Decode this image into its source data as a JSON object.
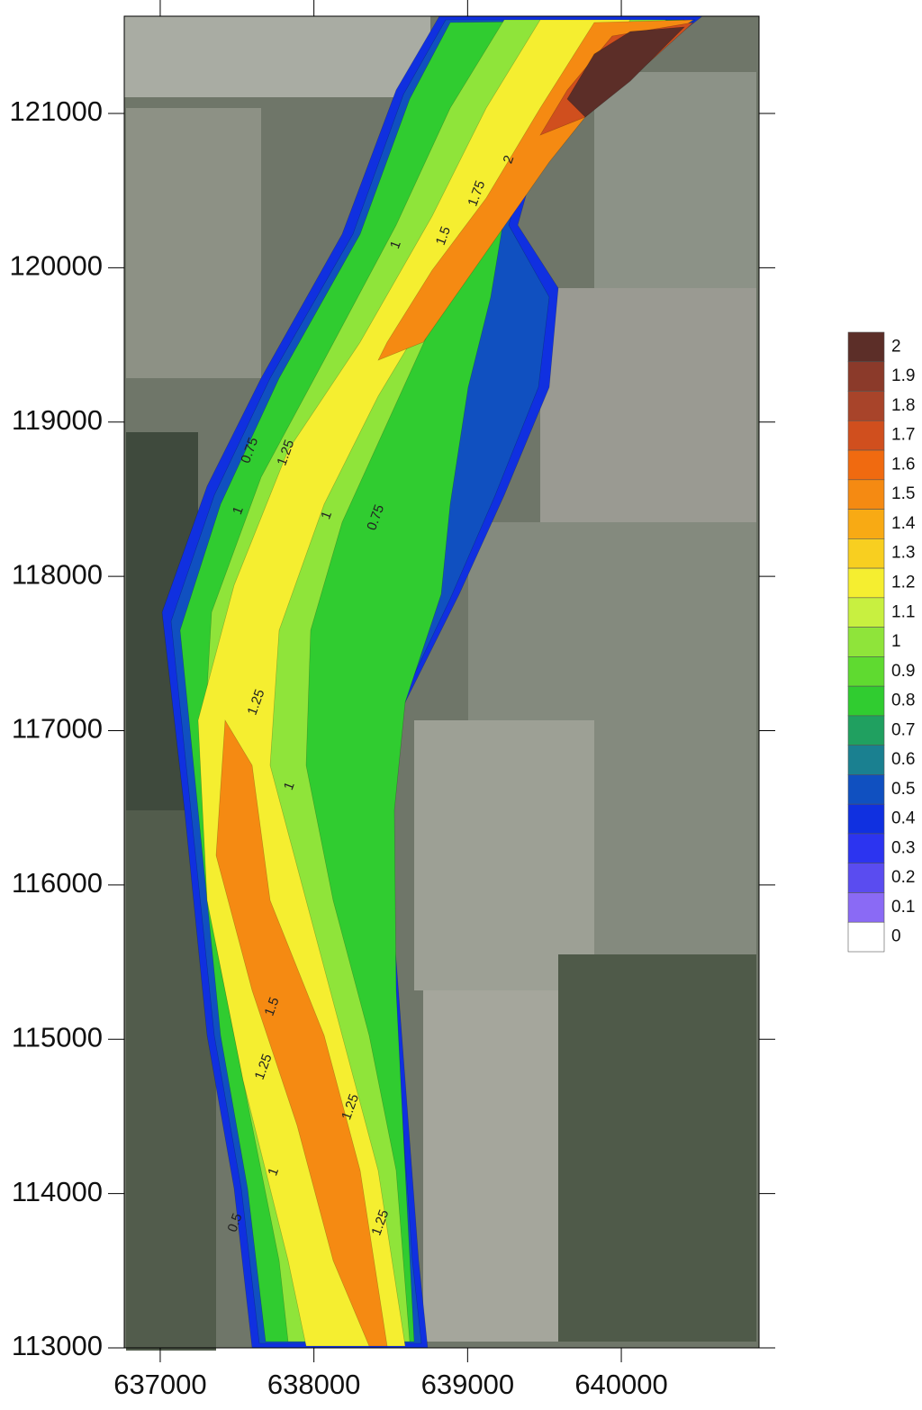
{
  "map": {
    "xlim": [
      636766,
      640896
    ],
    "ylim": [
      113000,
      121630
    ],
    "xticks": [
      637000,
      638000,
      639000,
      640000
    ],
    "yticks": [
      113000,
      114000,
      115000,
      116000,
      117000,
      118000,
      119000,
      120000,
      121000
    ],
    "colorbar": {
      "levels": [
        2,
        1.9,
        1.8,
        1.7,
        1.6,
        1.5,
        1.4,
        1.3,
        1.2,
        1.1,
        1,
        0.9,
        0.8,
        0.7,
        0.6,
        0.5,
        0.4,
        0.3,
        0.2,
        0.1,
        0
      ],
      "colors": [
        "#5c2e28",
        "#8b3a2a",
        "#a8442a",
        "#d04f1e",
        "#f06a10",
        "#f58a12",
        "#f8aa14",
        "#f8cf20",
        "#f5ee30",
        "#c8f040",
        "#8fe43a",
        "#5fda30",
        "#30cc30",
        "#20a060",
        "#1a8090",
        "#1050c0",
        "#1030e0",
        "#2c34f0",
        "#5a4cf0",
        "#8a6af5",
        "#ffffff"
      ]
    },
    "contour_labels": [
      {
        "value": 2,
        "x": 639270,
        "y": 120700
      },
      {
        "value": 1.75,
        "x": 639062,
        "y": 120480
      },
      {
        "value": 1.5,
        "x": 638845,
        "y": 120205
      },
      {
        "value": 1,
        "x": 638535,
        "y": 120147
      },
      {
        "value": 1.25,
        "x": 637820,
        "y": 118800
      },
      {
        "value": 0.75,
        "x": 637585,
        "y": 118815
      },
      {
        "value": 1,
        "x": 637510,
        "y": 118425
      },
      {
        "value": 1,
        "x": 638085,
        "y": 118395
      },
      {
        "value": 0.75,
        "x": 638405,
        "y": 118380
      },
      {
        "value": 1.25,
        "x": 637627,
        "y": 117183
      },
      {
        "value": 1,
        "x": 637843,
        "y": 116640
      },
      {
        "value": 1.5,
        "x": 637730,
        "y": 115210
      },
      {
        "value": 1.25,
        "x": 637675,
        "y": 114820
      },
      {
        "value": 1.25,
        "x": 638240,
        "y": 114560
      },
      {
        "value": 1,
        "x": 637740,
        "y": 114140
      },
      {
        "value": 1.25,
        "x": 638435,
        "y": 113810
      },
      {
        "value": 0.5,
        "x": 637490,
        "y": 113810
      }
    ]
  }
}
